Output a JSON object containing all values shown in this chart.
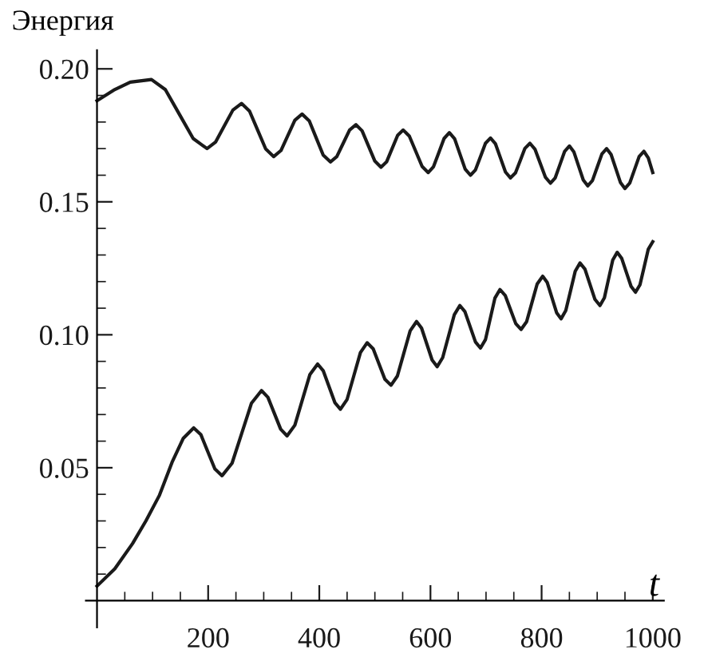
{
  "chart_data": {
    "type": "line",
    "xlabel": "t",
    "ylabel": "Энергия",
    "xlim": [
      -20,
      1020
    ],
    "ylim": [
      -0.01,
      0.207
    ],
    "xticks": [
      {
        "value": 50,
        "label": null
      },
      {
        "value": 100,
        "label": null
      },
      {
        "value": 150,
        "label": null
      },
      200,
      {
        "value": 250,
        "label": null
      },
      {
        "value": 300,
        "label": null
      },
      {
        "value": 350,
        "label": null
      },
      400,
      {
        "value": 450,
        "label": null
      },
      {
        "value": 500,
        "label": null
      },
      {
        "value": 550,
        "label": null
      },
      600,
      {
        "value": 650,
        "label": null
      },
      {
        "value": 700,
        "label": null
      },
      {
        "value": 750,
        "label": null
      },
      800,
      {
        "value": 850,
        "label": null
      },
      {
        "value": 900,
        "label": null
      },
      {
        "value": 950,
        "label": null
      },
      1000
    ],
    "yticks": [
      {
        "value": 0.01,
        "label": null
      },
      {
        "value": 0.02,
        "label": null
      },
      {
        "value": 0.03,
        "label": null
      },
      {
        "value": 0.04,
        "label": null
      },
      {
        "value": 0.05,
        "label": "0.05"
      },
      {
        "value": 0.06,
        "label": null
      },
      {
        "value": 0.07,
        "label": null
      },
      {
        "value": 0.08,
        "label": null
      },
      {
        "value": 0.09,
        "label": null
      },
      {
        "value": 0.1,
        "label": "0.10"
      },
      {
        "value": 0.11,
        "label": null
      },
      {
        "value": 0.12,
        "label": null
      },
      {
        "value": 0.13,
        "label": null
      },
      {
        "value": 0.14,
        "label": null
      },
      {
        "value": 0.15,
        "label": "0.15"
      },
      {
        "value": 0.16,
        "label": null
      },
      {
        "value": 0.17,
        "label": null
      },
      {
        "value": 0.18,
        "label": null
      },
      {
        "value": 0.19,
        "label": null
      },
      {
        "value": 0.2,
        "label": "0.20"
      }
    ],
    "grid": false,
    "legend": false,
    "marker": "none",
    "line_style": "solid",
    "series": [
      {
        "color": "#1a1a1a",
        "x": [
          0,
          30,
          60,
          98,
          123,
          148,
          173,
          198,
          213.5,
          229,
          244.5,
          260,
          274.5,
          289,
          303.5,
          318,
          331,
          343.5,
          356,
          369,
          382,
          394.5,
          407,
          420,
          431.5,
          443,
          454.5,
          466,
          477,
          488.5,
          500,
          511,
          521,
          531,
          541,
          551,
          562,
          573.5,
          585,
          596,
          605.5,
          615,
          624.5,
          634,
          643.5,
          653,
          662.5,
          672,
          681,
          690,
          699,
          708,
          717,
          726,
          735,
          744,
          753,
          761.5,
          770,
          779,
          788,
          797.5,
          807,
          816,
          824.5,
          833,
          841.5,
          850,
          858,
          866.5,
          875,
          883,
          891.5,
          900,
          908.5,
          917,
          925,
          933.5,
          942,
          950,
          958.5,
          967,
          975.5,
          984,
          992,
          1000
        ],
        "values": [
          0.188,
          0.192,
          0.195,
          0.196,
          0.1922,
          0.183,
          0.1738,
          0.17,
          0.1725,
          0.1785,
          0.1845,
          0.187,
          0.1841,
          0.177,
          0.1699,
          0.167,
          0.1693,
          0.175,
          0.1807,
          0.183,
          0.1804,
          0.174,
          0.1676,
          0.165,
          0.167,
          0.172,
          0.177,
          0.179,
          0.1767,
          0.171,
          0.1653,
          0.163,
          0.165,
          0.17,
          0.175,
          0.177,
          0.1747,
          0.169,
          0.1633,
          0.161,
          0.1632,
          0.1685,
          0.1738,
          0.176,
          0.1737,
          0.168,
          0.1623,
          0.16,
          0.162,
          0.167,
          0.172,
          0.174,
          0.1718,
          0.1665,
          0.1612,
          0.159,
          0.1609,
          0.1655,
          0.1701,
          0.172,
          0.1698,
          0.1645,
          0.1592,
          0.157,
          0.159,
          0.164,
          0.169,
          0.171,
          0.1688,
          0.1635,
          0.1582,
          0.156,
          0.158,
          0.163,
          0.168,
          0.17,
          0.1678,
          0.1625,
          0.1572,
          0.155,
          0.157,
          0.162,
          0.167,
          0.169,
          0.1665,
          0.161
        ]
      },
      {
        "color": "#1a1a1a",
        "x": [
          0,
          32,
          64,
          88,
          112,
          135,
          155,
          174,
          187,
          199.5,
          212,
          225,
          243,
          260.5,
          278,
          296,
          307.5,
          319,
          330.5,
          342,
          356,
          369.5,
          383,
          397,
          407,
          417.5,
          428,
          438,
          450,
          462,
          474,
          486,
          497,
          507.5,
          518,
          529,
          540.5,
          552,
          563.5,
          575,
          584,
          593.5,
          603,
          612,
          622,
          632.5,
          643,
          653,
          662,
          671.5,
          681,
          690,
          699,
          707.5,
          716,
          725,
          734.5,
          744,
          753.5,
          763,
          773,
          782.5,
          792,
          802,
          810,
          818.5,
          827,
          835,
          843.5,
          852,
          860.5,
          869,
          878,
          887,
          896,
          905,
          913,
          920.5,
          928,
          936,
          944,
          952.5,
          961,
          969,
          977,
          984.5,
          992,
          1000
        ],
        "values": [
          0.0055,
          0.012,
          0.0215,
          0.03,
          0.0395,
          0.052,
          0.061,
          0.065,
          0.0624,
          0.056,
          0.0496,
          0.047,
          0.0517,
          0.063,
          0.0743,
          0.079,
          0.0765,
          0.0705,
          0.0645,
          0.062,
          0.066,
          0.0755,
          0.085,
          0.089,
          0.0865,
          0.0805,
          0.0745,
          0.072,
          0.0757,
          0.0845,
          0.0933,
          0.097,
          0.0947,
          0.089,
          0.0833,
          0.081,
          0.0845,
          0.093,
          0.1015,
          0.105,
          0.1025,
          0.0965,
          0.0905,
          0.088,
          0.0914,
          0.0995,
          0.1076,
          0.111,
          0.1087,
          0.103,
          0.0973,
          0.095,
          0.0982,
          0.106,
          0.1138,
          0.117,
          0.1148,
          0.1095,
          0.1042,
          0.102,
          0.1049,
          0.112,
          0.1191,
          0.122,
          0.1197,
          0.114,
          0.1083,
          0.106,
          0.1091,
          0.1165,
          0.1239,
          0.127,
          0.1247,
          0.119,
          0.1133,
          0.111,
          0.1139,
          0.121,
          0.1281,
          0.131,
          0.1288,
          0.1235,
          0.1182,
          0.116,
          0.1188,
          0.1255,
          0.1322,
          0.135
        ]
      }
    ]
  }
}
